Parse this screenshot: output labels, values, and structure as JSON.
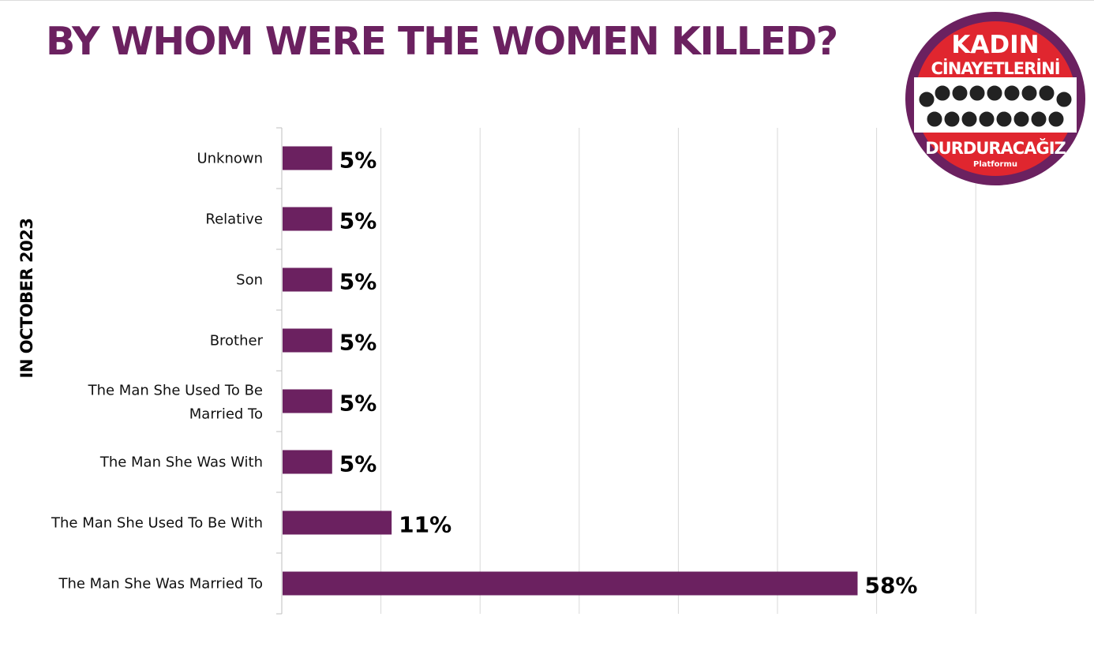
{
  "title": "BY WHOM WERE THE WOMEN KILLED?",
  "period_label": "IN OCTOBER 2023",
  "logo": {
    "line1": "KADIN",
    "line2": "CİNAYETLERİNİ",
    "line3": "DURDURACAĞIZ",
    "line4": "Platformu"
  },
  "colors": {
    "accent": "#6b2160",
    "bar": "#6b2160",
    "logo_red": "#e0262f",
    "gridline": "#d9d9d9"
  },
  "chart_data": {
    "type": "bar",
    "orientation": "horizontal",
    "categories": [
      "Unknown",
      "Relative",
      "Son",
      "Brother",
      "The Man She Used To Be Married To",
      "The Man She Was With",
      "The Man She Used To Be With",
      "The Man She Was Married To"
    ],
    "values": [
      5,
      5,
      5,
      5,
      5,
      5,
      11,
      58
    ],
    "data_labels": [
      "5%",
      "5%",
      "5%",
      "5%",
      "5%",
      "5%",
      "11%",
      "58%"
    ],
    "unit": "%",
    "xlim": [
      0,
      70
    ],
    "x_grid_step": 10,
    "grid": true,
    "tick_labels_shown": false
  }
}
